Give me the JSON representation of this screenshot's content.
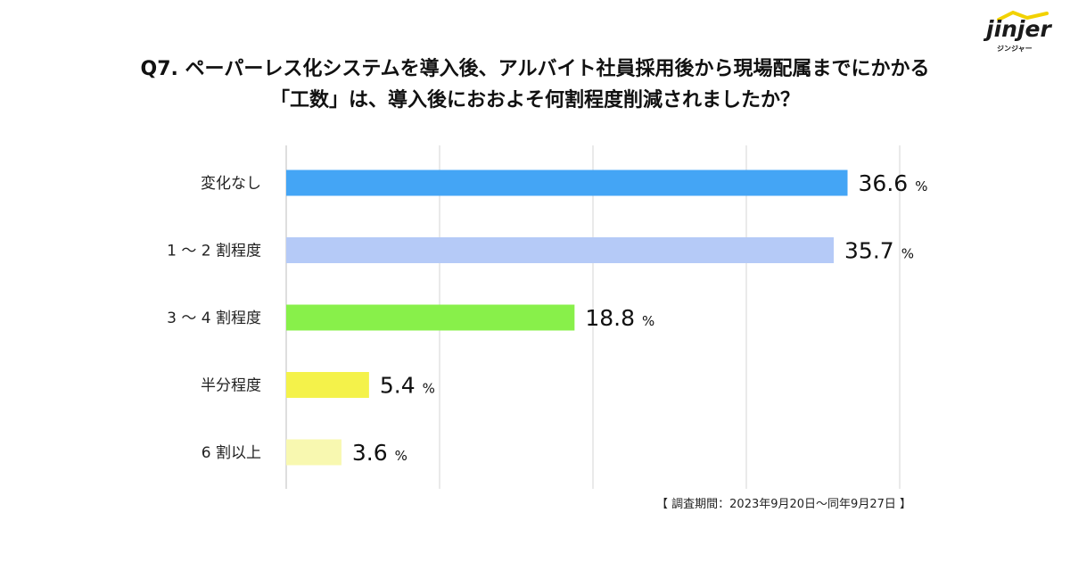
{
  "brand": {
    "logo_text": "jinjer",
    "logo_sub": "ジンジャー"
  },
  "footnote": "【 調査期間：2023年9月20日～同年9月27日 】",
  "chart_data": {
    "type": "bar",
    "orientation": "horizontal",
    "title_line1": "Q7. ペーパーレス化システムを導入後、アルバイト社員採用後から現場配属までにかかる",
    "title_line2": "「工数」は、導入後におおよそ何割程度削減されましたか？",
    "categories": [
      "変化なし",
      "1 ～ 2 割程度",
      "3 ～ 4 割程度",
      "半分程度",
      "6 割以上"
    ],
    "values": [
      36.6,
      35.7,
      18.8,
      5.4,
      3.6
    ],
    "value_labels": [
      "36.6",
      "35.7",
      "18.8",
      "5.4",
      "3.6"
    ],
    "unit": "%",
    "colors": [
      "#44a5f5",
      "#b5caf7",
      "#88f04a",
      "#f4f24a",
      "#f8f8b0"
    ],
    "xlim": [
      0,
      40
    ],
    "grid_step": 10,
    "grid": true,
    "legend": "none"
  }
}
